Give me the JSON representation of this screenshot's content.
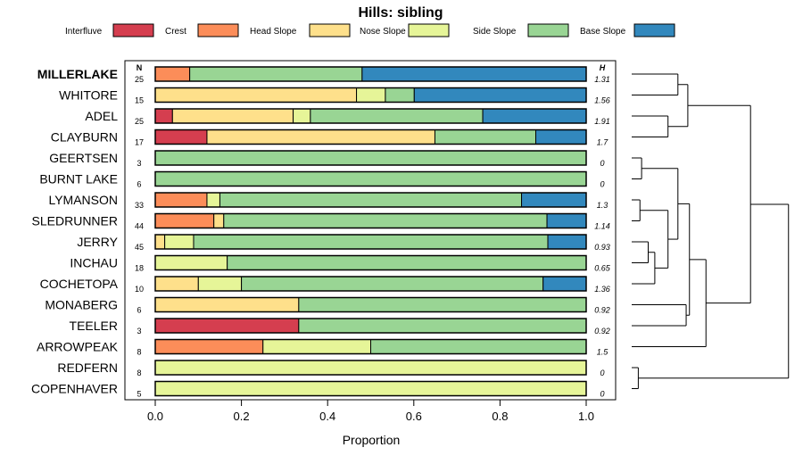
{
  "chart_data": {
    "type": "bar",
    "orientation": "horizontal",
    "stacked": true,
    "title": "Hills: sibling",
    "xlabel": "Proportion",
    "xlim": [
      0,
      1
    ],
    "xticks": [
      "0.0",
      "0.2",
      "0.4",
      "0.6",
      "0.8",
      "1.0"
    ],
    "n_header": "N",
    "h_header": "H",
    "legend": [
      "Interfluve",
      "Crest",
      "Head Slope",
      "Nose Slope",
      "Side Slope",
      "Base Slope"
    ],
    "colors": [
      "#d53e4f",
      "#fc8d59",
      "#fee08b",
      "#e6f598",
      "#99d594",
      "#3288bd"
    ],
    "categories": [
      "MILLERLAKE",
      "WHITORE",
      "ADEL",
      "CLAYBURN",
      "GEERTSEN",
      "BURNT LAKE",
      "LYMANSON",
      "SLEDRUNNER",
      "JERRY",
      "INCHAU",
      "COCHETOPA",
      "MONABERG",
      "TEELER",
      "ARROWPEAK",
      "REDFERN",
      "COPENHAVER"
    ],
    "highlight": "MILLERLAKE",
    "n": [
      "25",
      "15",
      "25",
      "17",
      "3",
      "6",
      "33",
      "44",
      "45",
      "18",
      "10",
      "6",
      "3",
      "8",
      "8",
      "5"
    ],
    "h": [
      "1.31",
      "1.56",
      "1.91",
      "1.7",
      "0",
      "0",
      "1.3",
      "1.14",
      "0.93",
      "0.65",
      "1.36",
      "0.92",
      "0.92",
      "1.5",
      "0",
      "0"
    ],
    "series": [
      {
        "name": "Interfluve",
        "values": [
          0,
          0,
          0.04,
          0.12,
          0,
          0,
          0,
          0,
          0,
          0,
          0,
          0,
          0.333,
          0,
          0,
          0
        ]
      },
      {
        "name": "Crest",
        "values": [
          0.08,
          0,
          0,
          0,
          0,
          0,
          0.12,
          0.136,
          0,
          0,
          0,
          0,
          0,
          0.25,
          0,
          0
        ]
      },
      {
        "name": "Head Slope",
        "values": [
          0,
          0.467,
          0.28,
          0.529,
          0,
          0,
          0,
          0.023,
          0.022,
          0,
          0.1,
          0.333,
          0,
          0,
          0,
          0
        ]
      },
      {
        "name": "Nose Slope",
        "values": [
          0,
          0.067,
          0.04,
          0,
          0,
          0,
          0.03,
          0,
          0.067,
          0.167,
          0.1,
          0,
          0,
          0.25,
          1,
          1
        ]
      },
      {
        "name": "Side Slope",
        "values": [
          0.4,
          0.067,
          0.4,
          0.234,
          1,
          1,
          0.7,
          0.75,
          0.822,
          0.833,
          0.7,
          0.667,
          0.667,
          0.5,
          0,
          0
        ]
      },
      {
        "name": "Base Slope",
        "values": [
          0.52,
          0.4,
          0.24,
          0.118,
          0,
          0,
          0.15,
          0.091,
          0.089,
          0,
          0.1,
          0,
          0,
          0,
          0,
          0
        ]
      }
    ],
    "dendrogram": {
      "description": "hierarchical clustering of rows",
      "merges": [
        [
          0,
          1,
          0.28
        ],
        [
          2,
          3,
          0.22
        ],
        [
          "m0",
          "m1",
          0.34
        ],
        [
          4,
          5,
          0.06
        ],
        [
          6,
          7,
          0.05
        ],
        [
          8,
          9,
          0.1
        ],
        [
          10,
          "m5",
          0.14
        ],
        [
          "m4",
          "m6",
          0.22
        ],
        [
          "m3",
          "m7",
          0.28
        ],
        [
          11,
          12,
          0.33
        ],
        [
          "m8",
          "m9",
          0.35
        ],
        [
          13,
          "m10",
          0.45
        ],
        [
          "m2",
          "m11",
          0.72
        ],
        [
          14,
          15,
          0.04
        ],
        [
          "m12",
          "m13",
          0.95
        ]
      ]
    }
  }
}
